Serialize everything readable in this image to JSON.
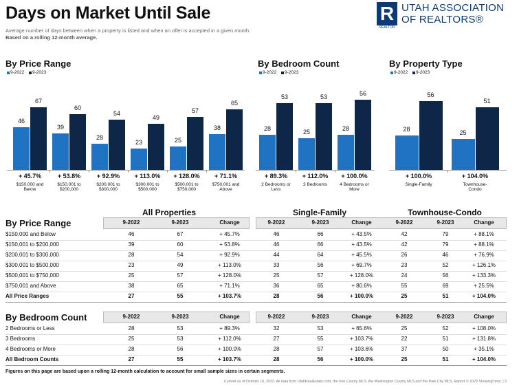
{
  "header": {
    "title": "Days on Market Until Sale",
    "subtitle": "Average number of days between when a property is listed and when an offer is accepted in a given month.",
    "note": "Based on a rolling 12-month average.",
    "logo": {
      "mark": "R",
      "line1": "UTAH ASSOCIATION",
      "line2": "OF REALTORS®",
      "caption": "REALTOR"
    }
  },
  "chart_data": [
    {
      "type": "bar",
      "title": "By Price Range",
      "legend": "top-left",
      "categories": [
        "$150,000 and Below",
        "$150,001 to $200,000",
        "$200,001 to $300,000",
        "$300,001 to $500,000",
        "$500,001 to $750,000",
        "$750,001 and Above"
      ],
      "series": [
        {
          "name": "9-2022",
          "color": "#1f73c2",
          "values": [
            46,
            39,
            28,
            23,
            25,
            38
          ]
        },
        {
          "name": "9-2023",
          "color": "#0e2748",
          "values": [
            67,
            60,
            54,
            49,
            57,
            65
          ]
        }
      ],
      "change_labels": [
        "+ 45.7%",
        "+ 53.8%",
        "+ 92.9%",
        "+ 113.0%",
        "+ 128.0%",
        "+ 71.1%"
      ]
    },
    {
      "type": "bar",
      "title": "By Bedroom Count",
      "legend": "top-left",
      "categories": [
        "2 Bedrooms or Less",
        "3 Bedrooms",
        "4 Bedrooms or More"
      ],
      "series": [
        {
          "name": "9-2022",
          "color": "#1f73c2",
          "values": [
            28,
            25,
            28
          ]
        },
        {
          "name": "9-2023",
          "color": "#0e2748",
          "values": [
            53,
            53,
            56
          ]
        }
      ],
      "change_labels": [
        "+ 89.3%",
        "+ 112.0%",
        "+ 100.0%"
      ]
    },
    {
      "type": "bar",
      "title": "By Property Type",
      "legend": "top-left",
      "categories": [
        "Single-Family",
        "Townhouse-Condo"
      ],
      "series": [
        {
          "name": "9-2022",
          "color": "#1f73c2",
          "values": [
            28,
            25
          ]
        },
        {
          "name": "9-2023",
          "color": "#0e2748",
          "values": [
            56,
            51
          ]
        }
      ],
      "change_labels": [
        "+ 100.0%",
        "+ 104.0%"
      ]
    }
  ],
  "tables": {
    "groups": [
      "All Properties",
      "Single-Family",
      "Townhouse-Condo"
    ],
    "columns": [
      "9-2022",
      "9-2023",
      "Change"
    ],
    "sections": [
      {
        "title": "By Price Range",
        "rows": [
          {
            "label": "$150,000 and Below",
            "cells": [
              [
                46,
                67,
                "+ 45.7%"
              ],
              [
                46,
                66,
                "+ 43.5%"
              ],
              [
                42,
                79,
                "+ 88.1%"
              ]
            ]
          },
          {
            "label": "$150,001 to $200,000",
            "cells": [
              [
                39,
                60,
                "+ 53.8%"
              ],
              [
                46,
                66,
                "+ 43.5%"
              ],
              [
                42,
                79,
                "+ 88.1%"
              ]
            ]
          },
          {
            "label": "$200,001 to $300,000",
            "cells": [
              [
                28,
                54,
                "+ 92.9%"
              ],
              [
                44,
                64,
                "+ 45.5%"
              ],
              [
                26,
                46,
                "+ 76.9%"
              ]
            ]
          },
          {
            "label": "$300,001 to $500,000",
            "cells": [
              [
                23,
                49,
                "+ 113.0%"
              ],
              [
                33,
                56,
                "+ 69.7%"
              ],
              [
                23,
                52,
                "+ 126.1%"
              ]
            ]
          },
          {
            "label": "$500,001 to $750,000",
            "cells": [
              [
                25,
                57,
                "+ 128.0%"
              ],
              [
                25,
                57,
                "+ 128.0%"
              ],
              [
                24,
                56,
                "+ 133.3%"
              ]
            ]
          },
          {
            "label": "$750,001 and Above",
            "cells": [
              [
                38,
                65,
                "+ 71.1%"
              ],
              [
                36,
                65,
                "+ 80.6%"
              ],
              [
                55,
                69,
                "+ 25.5%"
              ]
            ]
          },
          {
            "label": "All Price Ranges",
            "cells": [
              [
                27,
                55,
                "+ 103.7%"
              ],
              [
                28,
                56,
                "+ 100.0%"
              ],
              [
                25,
                51,
                "+ 104.0%"
              ]
            ]
          }
        ]
      },
      {
        "title": "By Bedroom Count",
        "rows": [
          {
            "label": "2 Bedrooms or Less",
            "cells": [
              [
                28,
                53,
                "+ 89.3%"
              ],
              [
                32,
                53,
                "+ 65.6%"
              ],
              [
                25,
                52,
                "+ 108.0%"
              ]
            ]
          },
          {
            "label": "3 Bedrooms",
            "cells": [
              [
                25,
                53,
                "+ 112.0%"
              ],
              [
                27,
                55,
                "+ 103.7%"
              ],
              [
                22,
                51,
                "+ 131.8%"
              ]
            ]
          },
          {
            "label": "4 Bedrooms or More",
            "cells": [
              [
                28,
                56,
                "+ 100.0%"
              ],
              [
                28,
                57,
                "+ 103.6%"
              ],
              [
                37,
                50,
                "+ 35.1%"
              ]
            ]
          },
          {
            "label": "All Bedroom Counts",
            "cells": [
              [
                27,
                55,
                "+ 103.7%"
              ],
              [
                28,
                56,
                "+ 100.0%"
              ],
              [
                25,
                51,
                "+ 104.0%"
              ]
            ]
          }
        ]
      }
    ]
  },
  "footnote": "Figures on this page are based upon a rolling 12-month calculation to account for small sample sizes in certain segments.",
  "footer": "Current as of October 10, 2023. All data from UtahRealEstate.com, the Iron County MLS, the Washington County MLS and the Park City MLS. Report © 2023 ShowingTime. | 3"
}
